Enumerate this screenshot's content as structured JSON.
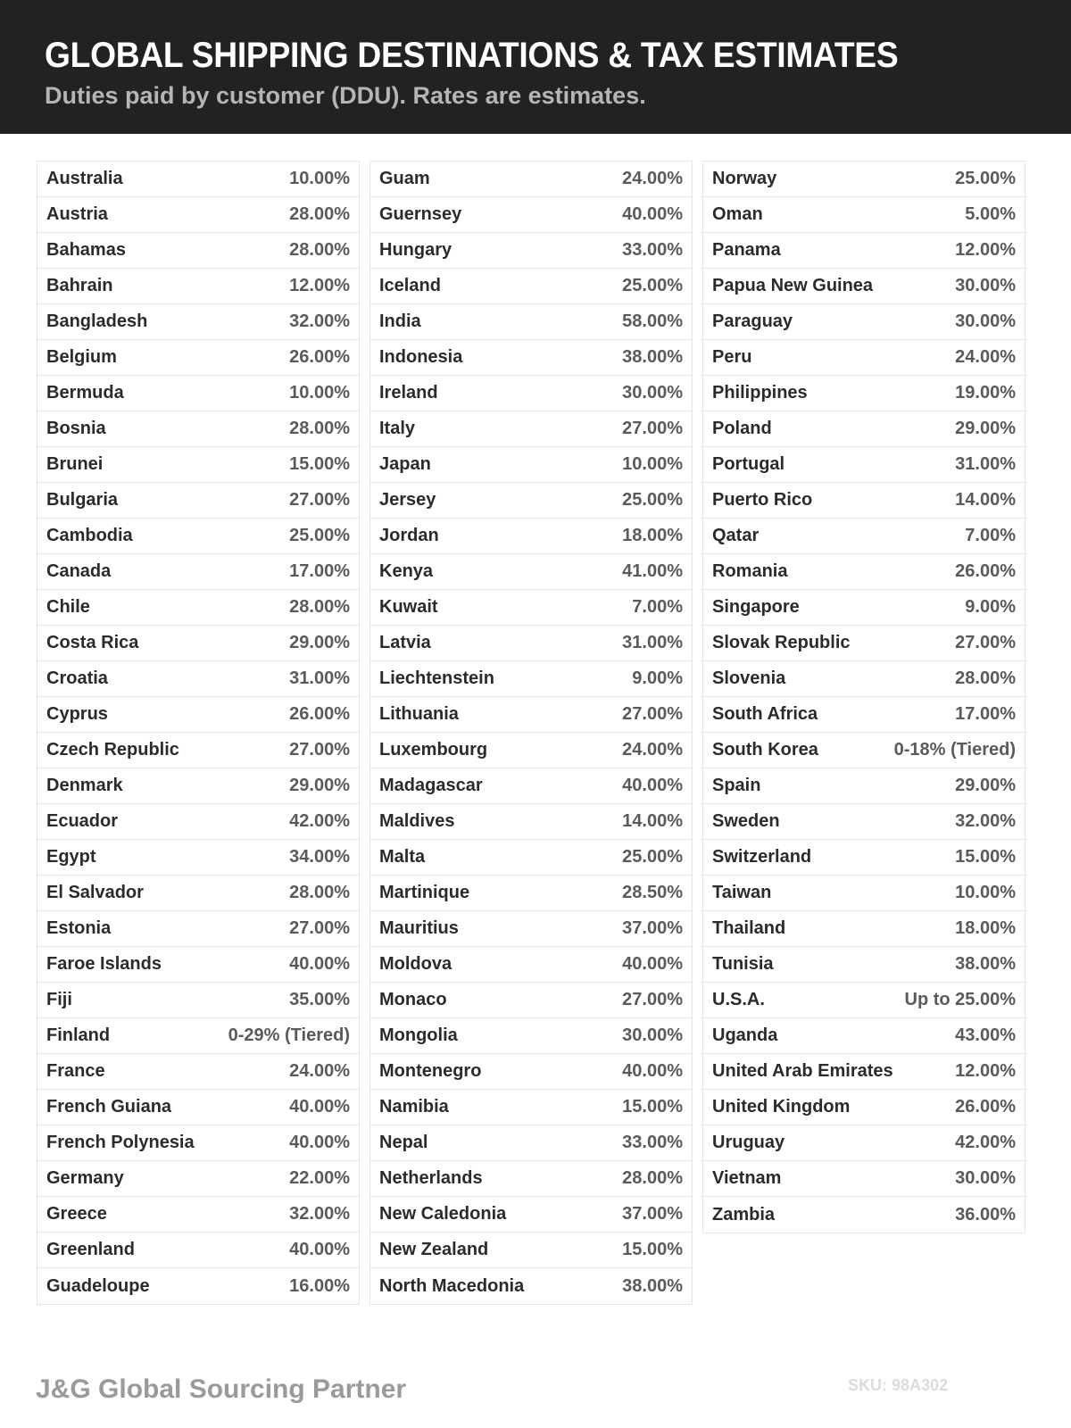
{
  "header": {
    "title": "GLOBAL SHIPPING DESTINATIONS & TAX ESTIMATES",
    "subtitle": "Duties paid by customer (DDU). Rates are estimates."
  },
  "columns": [
    [
      {
        "country": "Australia",
        "rate": "10.00%"
      },
      {
        "country": "Austria",
        "rate": "28.00%"
      },
      {
        "country": "Bahamas",
        "rate": "28.00%"
      },
      {
        "country": "Bahrain",
        "rate": "12.00%"
      },
      {
        "country": "Bangladesh",
        "rate": "32.00%"
      },
      {
        "country": "Belgium",
        "rate": "26.00%"
      },
      {
        "country": "Bermuda",
        "rate": "10.00%"
      },
      {
        "country": "Bosnia",
        "rate": "28.00%"
      },
      {
        "country": "Brunei",
        "rate": "15.00%"
      },
      {
        "country": "Bulgaria",
        "rate": "27.00%"
      },
      {
        "country": "Cambodia",
        "rate": "25.00%"
      },
      {
        "country": "Canada",
        "rate": "17.00%"
      },
      {
        "country": "Chile",
        "rate": "28.00%"
      },
      {
        "country": "Costa Rica",
        "rate": "29.00%"
      },
      {
        "country": "Croatia",
        "rate": "31.00%"
      },
      {
        "country": "Cyprus",
        "rate": "26.00%"
      },
      {
        "country": "Czech Republic",
        "rate": "27.00%"
      },
      {
        "country": "Denmark",
        "rate": "29.00%"
      },
      {
        "country": "Ecuador",
        "rate": "42.00%"
      },
      {
        "country": "Egypt",
        "rate": "34.00%"
      },
      {
        "country": "El Salvador",
        "rate": "28.00%"
      },
      {
        "country": "Estonia",
        "rate": "27.00%"
      },
      {
        "country": "Faroe Islands",
        "rate": "40.00%"
      },
      {
        "country": "Fiji",
        "rate": "35.00%"
      },
      {
        "country": "Finland",
        "rate": "0-29% (Tiered)"
      },
      {
        "country": "France",
        "rate": "24.00%"
      },
      {
        "country": "French Guiana",
        "rate": "40.00%"
      },
      {
        "country": "French Polynesia",
        "rate": "40.00%"
      },
      {
        "country": "Germany",
        "rate": "22.00%"
      },
      {
        "country": "Greece",
        "rate": "32.00%"
      },
      {
        "country": "Greenland",
        "rate": "40.00%"
      },
      {
        "country": "Guadeloupe",
        "rate": "16.00%"
      }
    ],
    [
      {
        "country": "Guam",
        "rate": "24.00%"
      },
      {
        "country": "Guernsey",
        "rate": "40.00%"
      },
      {
        "country": "Hungary",
        "rate": "33.00%"
      },
      {
        "country": "Iceland",
        "rate": "25.00%"
      },
      {
        "country": "India",
        "rate": "58.00%"
      },
      {
        "country": "Indonesia",
        "rate": "38.00%"
      },
      {
        "country": "Ireland",
        "rate": "30.00%"
      },
      {
        "country": "Italy",
        "rate": "27.00%"
      },
      {
        "country": "Japan",
        "rate": "10.00%"
      },
      {
        "country": "Jersey",
        "rate": "25.00%"
      },
      {
        "country": "Jordan",
        "rate": "18.00%"
      },
      {
        "country": "Kenya",
        "rate": "41.00%"
      },
      {
        "country": "Kuwait",
        "rate": "7.00%"
      },
      {
        "country": "Latvia",
        "rate": "31.00%"
      },
      {
        "country": "Liechtenstein",
        "rate": "9.00%"
      },
      {
        "country": "Lithuania",
        "rate": "27.00%"
      },
      {
        "country": "Luxembourg",
        "rate": "24.00%"
      },
      {
        "country": "Madagascar",
        "rate": "40.00%"
      },
      {
        "country": "Maldives",
        "rate": "14.00%"
      },
      {
        "country": "Malta",
        "rate": "25.00%"
      },
      {
        "country": "Martinique",
        "rate": "28.50%"
      },
      {
        "country": "Mauritius",
        "rate": "37.00%"
      },
      {
        "country": "Moldova",
        "rate": "40.00%"
      },
      {
        "country": "Monaco",
        "rate": "27.00%"
      },
      {
        "country": "Mongolia",
        "rate": "30.00%"
      },
      {
        "country": "Montenegro",
        "rate": "40.00%"
      },
      {
        "country": "Namibia",
        "rate": "15.00%"
      },
      {
        "country": "Nepal",
        "rate": "33.00%"
      },
      {
        "country": "Netherlands",
        "rate": "28.00%"
      },
      {
        "country": "New Caledonia",
        "rate": "37.00%"
      },
      {
        "country": "New Zealand",
        "rate": "15.00%"
      },
      {
        "country": "North Macedonia",
        "rate": "38.00%"
      }
    ],
    [
      {
        "country": "Norway",
        "rate": "25.00%"
      },
      {
        "country": "Oman",
        "rate": "5.00%"
      },
      {
        "country": "Panama",
        "rate": "12.00%"
      },
      {
        "country": "Papua New Guinea",
        "rate": "30.00%"
      },
      {
        "country": "Paraguay",
        "rate": "30.00%"
      },
      {
        "country": "Peru",
        "rate": "24.00%"
      },
      {
        "country": "Philippines",
        "rate": "19.00%"
      },
      {
        "country": "Poland",
        "rate": "29.00%"
      },
      {
        "country": "Portugal",
        "rate": "31.00%"
      },
      {
        "country": "Puerto Rico",
        "rate": "14.00%"
      },
      {
        "country": "Qatar",
        "rate": "7.00%"
      },
      {
        "country": "Romania",
        "rate": "26.00%"
      },
      {
        "country": "Singapore",
        "rate": "9.00%"
      },
      {
        "country": "Slovak Republic",
        "rate": "27.00%"
      },
      {
        "country": "Slovenia",
        "rate": "28.00%"
      },
      {
        "country": "South Africa",
        "rate": "17.00%"
      },
      {
        "country": "South Korea",
        "rate": "0-18% (Tiered)"
      },
      {
        "country": "Spain",
        "rate": "29.00%"
      },
      {
        "country": "Sweden",
        "rate": "32.00%"
      },
      {
        "country": "Switzerland",
        "rate": "15.00%"
      },
      {
        "country": "Taiwan",
        "rate": "10.00%"
      },
      {
        "country": "Thailand",
        "rate": "18.00%"
      },
      {
        "country": "Tunisia",
        "rate": "38.00%"
      },
      {
        "country": "U.S.A.",
        "rate": "Up to 25.00%"
      },
      {
        "country": "Uganda",
        "rate": "43.00%"
      },
      {
        "country": "United Arab Emirates",
        "rate": "12.00%"
      },
      {
        "country": "United Kingdom",
        "rate": "26.00%"
      },
      {
        "country": "Uruguay",
        "rate": "42.00%"
      },
      {
        "country": "Vietnam",
        "rate": "30.00%"
      },
      {
        "country": "Zambia",
        "rate": "36.00%"
      }
    ]
  ],
  "footer": {
    "brand": "J&G Global Sourcing Partner",
    "sku": "SKU: 98A302"
  }
}
